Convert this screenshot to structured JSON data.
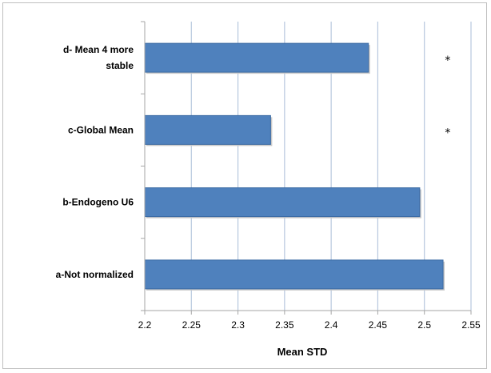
{
  "chart_data": {
    "type": "bar",
    "orientation": "horizontal",
    "title": "",
    "xlabel": "Mean STD",
    "ylabel": "",
    "categories": [
      "a-Not normalized",
      "b-Endogeno U6",
      "c-Global Mean",
      "d- Mean 4 more stable"
    ],
    "category_label_lines": [
      [
        "a-Not normalized"
      ],
      [
        "b-Endogeno U6"
      ],
      [
        "c-Global Mean"
      ],
      [
        "d- Mean 4 more",
        "stable"
      ]
    ],
    "values": [
      2.52,
      2.495,
      2.335,
      2.44
    ],
    "xlim": [
      2.2,
      2.55
    ],
    "xticks": [
      2.2,
      2.25,
      2.3,
      2.35,
      2.4,
      2.45,
      2.5,
      2.55
    ],
    "xtick_labels": [
      "2.2",
      "2.25",
      "2.3",
      "2.35",
      "2.4",
      "2.45",
      "2.5",
      "2.55"
    ],
    "grid": "vertical",
    "legend": "none",
    "markers": [
      {
        "category": "c-Global Mean",
        "symbol": "*",
        "x": 2.525
      },
      {
        "category": "d- Mean 4 more stable",
        "symbol": "*",
        "x": 2.525
      }
    ],
    "colors": {
      "bar": "#4f81bd",
      "bar_edge": "#3a6aa3",
      "grid": "#b7c7de",
      "axis": "#a6a6a6"
    }
  }
}
